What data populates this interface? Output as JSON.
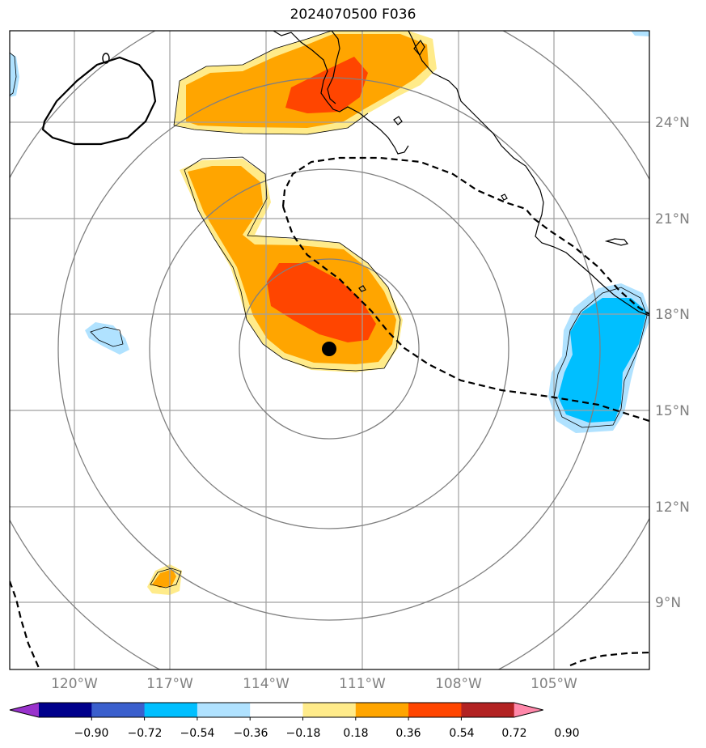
{
  "title": "2024070500 F036",
  "lon_labels": [
    "120°W",
    "117°W",
    "114°W",
    "111°W",
    "108°W",
    "105°W"
  ],
  "lat_labels": [
    "24°N",
    "21°N",
    "18°N",
    "15°N",
    "12°N",
    "9°N"
  ],
  "colorbar": {
    "tick_labels": [
      "−0.90",
      "−0.72",
      "−0.54",
      "−0.36",
      "−0.18",
      "0.18",
      "0.36",
      "0.54",
      "0.72",
      "0.90"
    ],
    "colors": [
      "#9932cc",
      "#00008b",
      "#3a5fcd",
      "#00bfff",
      "#b0e2ff",
      "#ffffff",
      "#ffeb8a",
      "#ffa500",
      "#ff4500",
      "#b22222",
      "#ff88aa"
    ]
  },
  "colors": {
    "positive_light": "#ffeb8a",
    "positive_mid": "#ffa500",
    "positive_strong": "#ff4500",
    "negative_light": "#b0e2ff",
    "negative_mid": "#00bfff",
    "grid": "#a0a0a0",
    "range_rings": "#808080",
    "axis_label": "#808080"
  },
  "map": {
    "center_marker": {
      "lon": -112.0,
      "lat": 16.8
    },
    "ring_count": 4
  }
}
